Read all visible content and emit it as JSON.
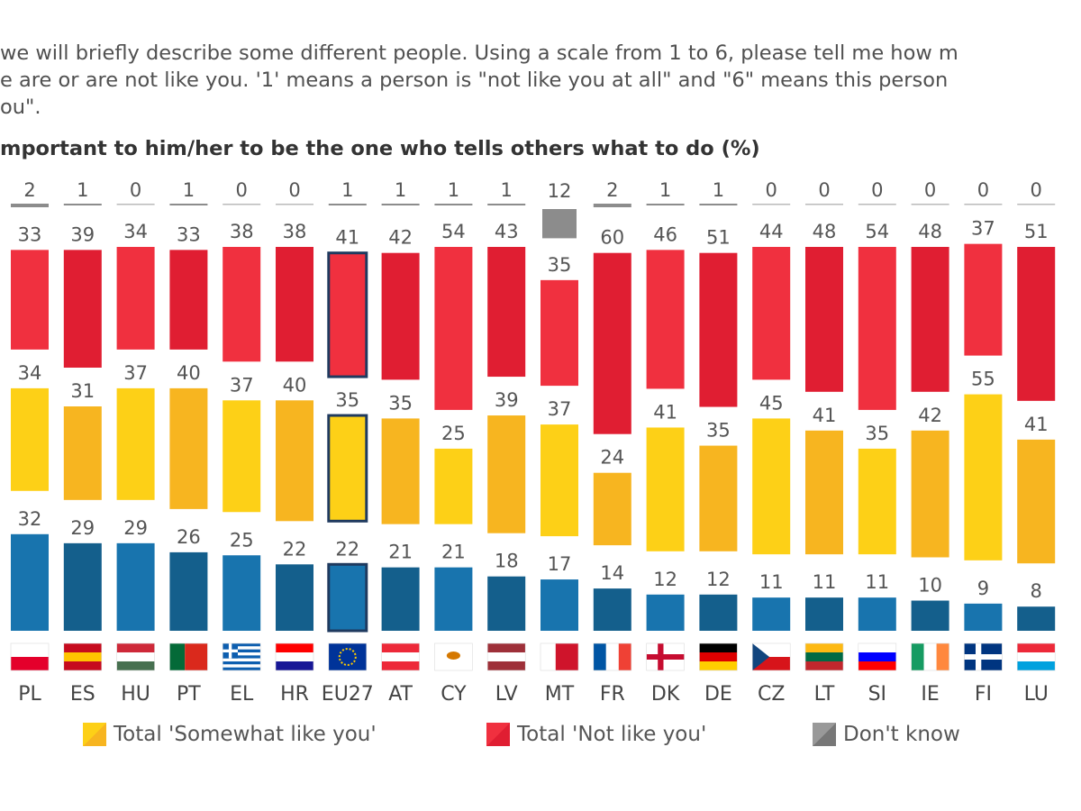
{
  "question": {
    "line1": "we will briefly describe some different people. Using a scale from 1 to 6, please tell me how m",
    "line2": "e are or are not like you. '1' means a person is \"not like you at all\" and \"6\" means this person",
    "line3": "ou\"."
  },
  "chart_data": {
    "type": "bar",
    "title": "mportant to him/her to be the one who tells others what to do  (%)",
    "categories": [
      "PL",
      "ES",
      "HU",
      "PT",
      "EL",
      "HR",
      "EU27",
      "AT",
      "CY",
      "LV",
      "MT",
      "FR",
      "DK",
      "DE",
      "CZ",
      "LT",
      "SI",
      "IE",
      "FI",
      "LU"
    ],
    "highlight": "EU27",
    "series": [
      {
        "name": "Total 'Somewhat like you'",
        "key": "somewhat",
        "color_light": "#FDD017",
        "color_dark": "#F7B520",
        "values": [
          34,
          31,
          37,
          40,
          37,
          40,
          35,
          35,
          25,
          39,
          37,
          24,
          41,
          35,
          45,
          41,
          35,
          42,
          55,
          41
        ]
      },
      {
        "name": "Total 'Not like you'",
        "key": "not",
        "color_light": "#F0303F",
        "color_dark": "#E01E32",
        "values": [
          33,
          39,
          34,
          33,
          38,
          38,
          41,
          42,
          54,
          43,
          35,
          60,
          46,
          51,
          44,
          48,
          54,
          48,
          37,
          51
        ]
      },
      {
        "name": "Don't know",
        "key": "dk",
        "color_light": "#8C8C8C",
        "color_dark": "#8C8C8C",
        "values": [
          2,
          1,
          0,
          1,
          0,
          0,
          1,
          1,
          1,
          1,
          12,
          2,
          1,
          1,
          0,
          0,
          0,
          0,
          0,
          0
        ]
      },
      {
        "key": "like",
        "color_light": "#1874AE",
        "color_dark": "#145F8C",
        "values": [
          32,
          29,
          29,
          26,
          25,
          22,
          22,
          21,
          21,
          18,
          17,
          14,
          12,
          12,
          11,
          11,
          11,
          10,
          9,
          8
        ]
      }
    ],
    "legend_position": "bottom",
    "grid": false
  }
}
